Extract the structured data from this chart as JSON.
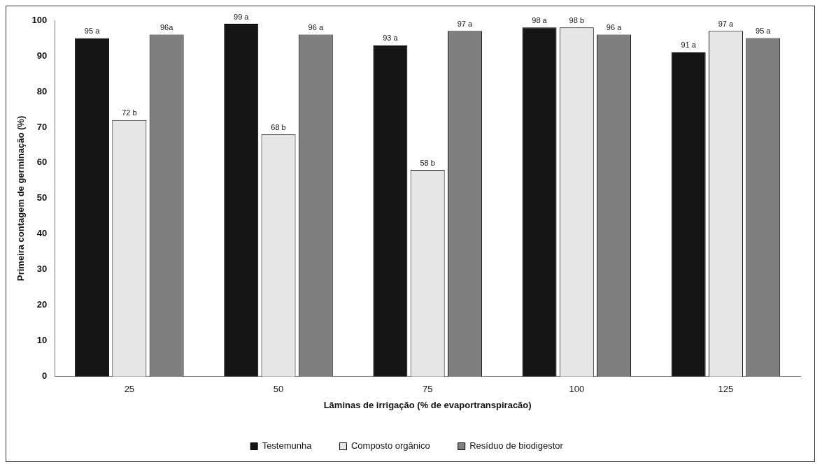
{
  "chart_data": {
    "type": "bar",
    "xlabel": "Lâminas de irrigação (% de evaportranspiracão)",
    "ylabel": "Primeira contagem de germinação (%)",
    "categories": [
      "25",
      "50",
      "75",
      "100",
      "125"
    ],
    "series": [
      {
        "name": "Testemunha",
        "color": "#151515",
        "values": [
          95,
          99,
          93,
          98,
          91
        ],
        "value_labels": [
          "95 a",
          "99 a",
          "93 a",
          "98 a",
          "91 a"
        ]
      },
      {
        "name": "Composto orgânico",
        "color": "#e6e6e6",
        "values": [
          72,
          68,
          58,
          98,
          97
        ],
        "value_labels": [
          "72 b",
          "68 b",
          "58 b",
          "98 b",
          "97 a"
        ]
      },
      {
        "name": "Resíduo de biodigestor",
        "color": "#7f7f7f",
        "values": [
          96,
          96,
          97,
          96,
          95
        ],
        "value_labels": [
          "96a",
          "96 a",
          "97 a",
          "96 a",
          "95 a"
        ]
      }
    ],
    "ylim": [
      0,
      100
    ],
    "yticks": [
      0,
      10,
      20,
      30,
      40,
      50,
      60,
      70,
      80,
      90,
      100
    ],
    "grid": false,
    "legend": "bottom"
  }
}
